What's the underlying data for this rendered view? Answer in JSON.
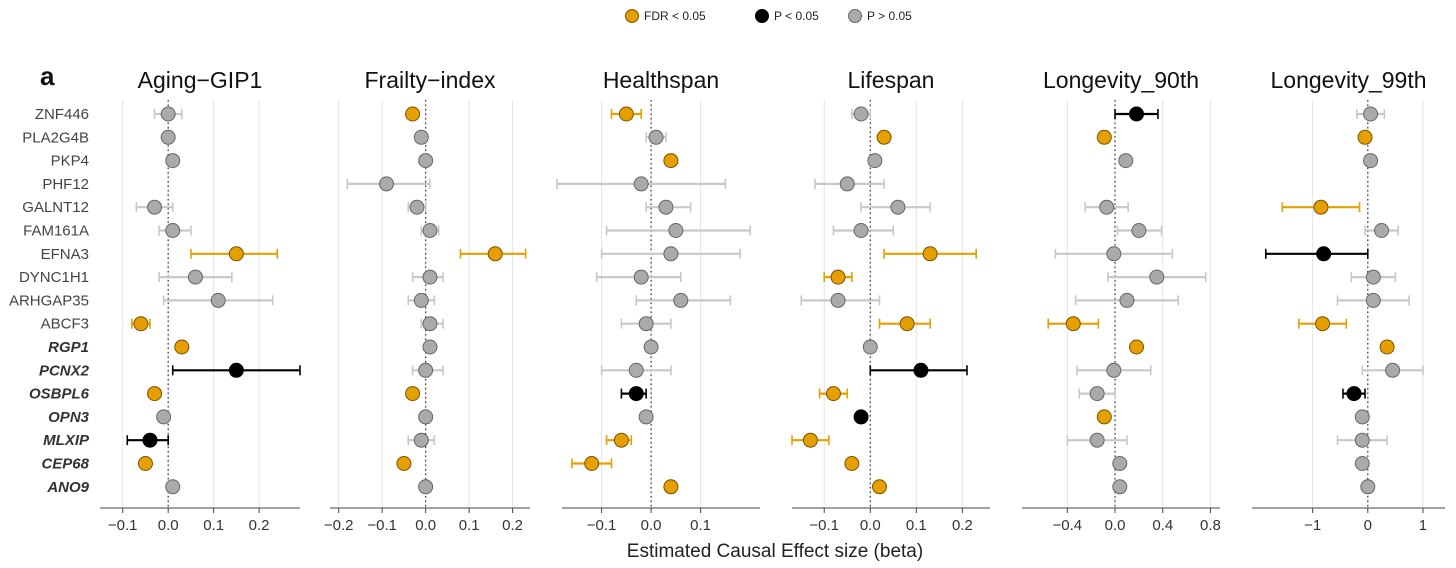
{
  "chart_data": {
    "type": "scatter",
    "panel_letter": "a",
    "xlabel": "Estimated Causal Effect size (beta)",
    "legend": [
      {
        "label": "FDR < 0.05",
        "color": "#E69F00"
      },
      {
        "label": "P < 0.05",
        "color": "#000000"
      },
      {
        "label": "P > 0.05",
        "color": "#AAAAAA"
      }
    ],
    "genes": [
      {
        "name": "ZNF446",
        "bold": false
      },
      {
        "name": "PLA2G4B",
        "bold": false
      },
      {
        "name": "PKP4",
        "bold": false
      },
      {
        "name": "PHF12",
        "bold": false
      },
      {
        "name": "GALNT12",
        "bold": false
      },
      {
        "name": "FAM161A",
        "bold": false
      },
      {
        "name": "EFNA3",
        "bold": false
      },
      {
        "name": "DYNC1H1",
        "bold": false
      },
      {
        "name": "ARHGAP35",
        "bold": false
      },
      {
        "name": "ABCF3",
        "bold": false
      },
      {
        "name": "RGP1",
        "bold": true
      },
      {
        "name": "PCNX2",
        "bold": true
      },
      {
        "name": "OSBPL6",
        "bold": true
      },
      {
        "name": "OPN3",
        "bold": true
      },
      {
        "name": "MLXIP",
        "bold": true
      },
      {
        "name": "CEP68",
        "bold": true
      },
      {
        "name": "ANO9",
        "bold": true
      }
    ],
    "panels": [
      {
        "title": "Aging−GIP1",
        "xlim": [
          -0.15,
          0.29
        ],
        "ticks": [
          -0.1,
          0.0,
          0.1,
          0.2
        ],
        "tick_labels": [
          "−0.1",
          "0.0",
          "0.1",
          "0.2"
        ],
        "points": [
          {
            "b": 0.0,
            "lo": -0.03,
            "hi": 0.03,
            "s": "ns"
          },
          {
            "b": 0.0,
            "lo": -0.01,
            "hi": 0.01,
            "s": "ns"
          },
          {
            "b": 0.01,
            "lo": 0.0,
            "hi": 0.02,
            "s": "ns"
          },
          {
            "b": null,
            "lo": null,
            "hi": null,
            "s": "none"
          },
          {
            "b": -0.03,
            "lo": -0.07,
            "hi": 0.01,
            "s": "ns"
          },
          {
            "b": 0.01,
            "lo": -0.02,
            "hi": 0.05,
            "s": "ns"
          },
          {
            "b": 0.15,
            "lo": 0.05,
            "hi": 0.24,
            "s": "fdr"
          },
          {
            "b": 0.06,
            "lo": -0.02,
            "hi": 0.14,
            "s": "ns"
          },
          {
            "b": 0.11,
            "lo": -0.01,
            "hi": 0.23,
            "s": "ns"
          },
          {
            "b": -0.06,
            "lo": -0.08,
            "hi": -0.04,
            "s": "fdr"
          },
          {
            "b": 0.03,
            "lo": 0.02,
            "hi": 0.04,
            "s": "fdr"
          },
          {
            "b": 0.15,
            "lo": 0.01,
            "hi": 0.29,
            "s": "p"
          },
          {
            "b": -0.03,
            "lo": -0.04,
            "hi": -0.02,
            "s": "fdr"
          },
          {
            "b": -0.01,
            "lo": -0.02,
            "hi": 0.0,
            "s": "ns"
          },
          {
            "b": -0.04,
            "lo": -0.09,
            "hi": 0.0,
            "s": "p"
          },
          {
            "b": -0.05,
            "lo": -0.06,
            "hi": -0.04,
            "s": "fdr"
          },
          {
            "b": 0.01,
            "lo": 0.0,
            "hi": 0.02,
            "s": "ns"
          }
        ]
      },
      {
        "title": "Frailty−index",
        "xlim": [
          -0.22,
          0.24
        ],
        "ticks": [
          -0.2,
          -0.1,
          0.0,
          0.1,
          0.2
        ],
        "tick_labels": [
          "−0.2",
          "−0.1",
          "0.0",
          "0.1",
          "0.2"
        ],
        "points": [
          {
            "b": -0.03,
            "lo": -0.04,
            "hi": -0.02,
            "s": "fdr"
          },
          {
            "b": -0.01,
            "lo": -0.02,
            "hi": 0.0,
            "s": "ns"
          },
          {
            "b": 0.0,
            "lo": -0.01,
            "hi": 0.01,
            "s": "ns"
          },
          {
            "b": -0.09,
            "lo": -0.18,
            "hi": 0.01,
            "s": "ns"
          },
          {
            "b": -0.02,
            "lo": -0.04,
            "hi": 0.0,
            "s": "ns"
          },
          {
            "b": 0.01,
            "lo": -0.01,
            "hi": 0.03,
            "s": "ns"
          },
          {
            "b": 0.16,
            "lo": 0.08,
            "hi": 0.23,
            "s": "fdr"
          },
          {
            "b": 0.01,
            "lo": -0.03,
            "hi": 0.04,
            "s": "ns"
          },
          {
            "b": -0.01,
            "lo": -0.04,
            "hi": 0.02,
            "s": "ns"
          },
          {
            "b": 0.01,
            "lo": -0.01,
            "hi": 0.04,
            "s": "ns"
          },
          {
            "b": 0.01,
            "lo": 0.0,
            "hi": 0.02,
            "s": "ns"
          },
          {
            "b": 0.0,
            "lo": -0.03,
            "hi": 0.04,
            "s": "ns"
          },
          {
            "b": -0.03,
            "lo": -0.04,
            "hi": -0.02,
            "s": "fdr"
          },
          {
            "b": 0.0,
            "lo": -0.01,
            "hi": 0.01,
            "s": "ns"
          },
          {
            "b": -0.01,
            "lo": -0.04,
            "hi": 0.02,
            "s": "ns"
          },
          {
            "b": -0.05,
            "lo": -0.06,
            "hi": -0.04,
            "s": "fdr"
          },
          {
            "b": 0.0,
            "lo": -0.01,
            "hi": 0.01,
            "s": "ns"
          }
        ]
      },
      {
        "title": "Healthspan",
        "xlim": [
          -0.18,
          0.22
        ],
        "ticks": [
          -0.1,
          0.0,
          0.1
        ],
        "tick_labels": [
          "−0.1",
          "0.0",
          "0.1"
        ],
        "points": [
          {
            "b": -0.05,
            "lo": -0.08,
            "hi": -0.02,
            "s": "fdr"
          },
          {
            "b": 0.01,
            "lo": -0.01,
            "hi": 0.03,
            "s": "ns"
          },
          {
            "b": 0.04,
            "lo": 0.03,
            "hi": 0.05,
            "s": "fdr"
          },
          {
            "b": -0.02,
            "lo": -0.19,
            "hi": 0.15,
            "s": "ns"
          },
          {
            "b": 0.03,
            "lo": -0.01,
            "hi": 0.08,
            "s": "ns"
          },
          {
            "b": 0.05,
            "lo": -0.09,
            "hi": 0.2,
            "s": "ns"
          },
          {
            "b": 0.04,
            "lo": -0.1,
            "hi": 0.18,
            "s": "ns"
          },
          {
            "b": -0.02,
            "lo": -0.11,
            "hi": 0.06,
            "s": "ns"
          },
          {
            "b": 0.06,
            "lo": -0.03,
            "hi": 0.16,
            "s": "ns"
          },
          {
            "b": -0.01,
            "lo": -0.06,
            "hi": 0.04,
            "s": "ns"
          },
          {
            "b": 0.0,
            "lo": -0.01,
            "hi": 0.01,
            "s": "ns"
          },
          {
            "b": -0.03,
            "lo": -0.1,
            "hi": 0.04,
            "s": "ns"
          },
          {
            "b": -0.03,
            "lo": -0.06,
            "hi": -0.01,
            "s": "p"
          },
          {
            "b": -0.01,
            "lo": -0.02,
            "hi": 0.0,
            "s": "ns"
          },
          {
            "b": -0.06,
            "lo": -0.09,
            "hi": -0.04,
            "s": "fdr"
          },
          {
            "b": -0.12,
            "lo": -0.16,
            "hi": -0.08,
            "s": "fdr"
          },
          {
            "b": 0.04,
            "lo": 0.03,
            "hi": 0.05,
            "s": "fdr"
          }
        ]
      },
      {
        "title": "Lifespan",
        "xlim": [
          -0.17,
          0.26
        ],
        "ticks": [
          -0.1,
          0.0,
          0.1,
          0.2
        ],
        "tick_labels": [
          "−0.1",
          "0.0",
          "0.1",
          "0.2"
        ],
        "points": [
          {
            "b": -0.02,
            "lo": -0.04,
            "hi": 0.0,
            "s": "ns"
          },
          {
            "b": 0.03,
            "lo": 0.02,
            "hi": 0.04,
            "s": "fdr"
          },
          {
            "b": 0.01,
            "lo": 0.0,
            "hi": 0.02,
            "s": "ns"
          },
          {
            "b": -0.05,
            "lo": -0.12,
            "hi": 0.03,
            "s": "ns"
          },
          {
            "b": 0.06,
            "lo": -0.02,
            "hi": 0.13,
            "s": "ns"
          },
          {
            "b": -0.02,
            "lo": -0.08,
            "hi": 0.05,
            "s": "ns"
          },
          {
            "b": 0.13,
            "lo": 0.03,
            "hi": 0.23,
            "s": "fdr"
          },
          {
            "b": -0.07,
            "lo": -0.1,
            "hi": -0.04,
            "s": "fdr"
          },
          {
            "b": -0.07,
            "lo": -0.15,
            "hi": 0.02,
            "s": "ns"
          },
          {
            "b": 0.08,
            "lo": 0.02,
            "hi": 0.13,
            "s": "fdr"
          },
          {
            "b": 0.0,
            "lo": -0.01,
            "hi": 0.01,
            "s": "ns"
          },
          {
            "b": 0.11,
            "lo": 0.0,
            "hi": 0.21,
            "s": "p"
          },
          {
            "b": -0.08,
            "lo": -0.11,
            "hi": -0.05,
            "s": "fdr"
          },
          {
            "b": -0.02,
            "lo": -0.03,
            "hi": -0.01,
            "s": "p"
          },
          {
            "b": -0.13,
            "lo": -0.17,
            "hi": -0.09,
            "s": "fdr"
          },
          {
            "b": -0.04,
            "lo": -0.05,
            "hi": -0.03,
            "s": "fdr"
          },
          {
            "b": 0.02,
            "lo": 0.01,
            "hi": 0.03,
            "s": "fdr"
          }
        ]
      },
      {
        "title": "Longevity_90th",
        "xlim": [
          -0.78,
          0.88
        ],
        "ticks": [
          -0.4,
          0.0,
          0.4,
          0.8
        ],
        "tick_labels": [
          "−0.4",
          "0.0",
          "0.4",
          "0.8"
        ],
        "points": [
          {
            "b": 0.18,
            "lo": 0.0,
            "hi": 0.36,
            "s": "p"
          },
          {
            "b": -0.09,
            "lo": -0.13,
            "hi": -0.05,
            "s": "fdr"
          },
          {
            "b": 0.09,
            "lo": 0.05,
            "hi": 0.13,
            "s": "ns"
          },
          {
            "b": null,
            "lo": null,
            "hi": null,
            "s": "none"
          },
          {
            "b": -0.07,
            "lo": -0.25,
            "hi": 0.11,
            "s": "ns"
          },
          {
            "b": 0.2,
            "lo": 0.02,
            "hi": 0.39,
            "s": "ns"
          },
          {
            "b": -0.01,
            "lo": -0.5,
            "hi": 0.48,
            "s": "ns"
          },
          {
            "b": 0.35,
            "lo": -0.06,
            "hi": 0.76,
            "s": "ns"
          },
          {
            "b": 0.1,
            "lo": -0.33,
            "hi": 0.53,
            "s": "ns"
          },
          {
            "b": -0.35,
            "lo": -0.56,
            "hi": -0.14,
            "s": "fdr"
          },
          {
            "b": 0.18,
            "lo": 0.15,
            "hi": 0.21,
            "s": "fdr"
          },
          {
            "b": -0.01,
            "lo": -0.32,
            "hi": 0.3,
            "s": "ns"
          },
          {
            "b": -0.15,
            "lo": -0.3,
            "hi": 0.0,
            "s": "ns"
          },
          {
            "b": -0.09,
            "lo": -0.13,
            "hi": -0.05,
            "s": "fdr"
          },
          {
            "b": -0.15,
            "lo": -0.4,
            "hi": 0.1,
            "s": "ns"
          },
          {
            "b": 0.04,
            "lo": 0.01,
            "hi": 0.07,
            "s": "ns"
          },
          {
            "b": 0.04,
            "lo": 0.01,
            "hi": 0.07,
            "s": "ns"
          }
        ]
      },
      {
        "title": "Longevity_99th",
        "xlim": [
          -2.1,
          1.4
        ],
        "ticks": [
          -1,
          0,
          1
        ],
        "tick_labels": [
          "−1",
          "0",
          "1"
        ],
        "points": [
          {
            "b": 0.05,
            "lo": -0.2,
            "hi": 0.3,
            "s": "ns"
          },
          {
            "b": -0.05,
            "lo": -0.12,
            "hi": 0.02,
            "s": "fdr"
          },
          {
            "b": 0.05,
            "lo": -0.05,
            "hi": 0.15,
            "s": "ns"
          },
          {
            "b": null,
            "lo": null,
            "hi": null,
            "s": "none"
          },
          {
            "b": -0.85,
            "lo": -1.55,
            "hi": -0.15,
            "s": "fdr"
          },
          {
            "b": 0.25,
            "lo": -0.05,
            "hi": 0.55,
            "s": "ns"
          },
          {
            "b": -0.8,
            "lo": -1.85,
            "hi": 0.0,
            "s": "p"
          },
          {
            "b": 0.1,
            "lo": -0.3,
            "hi": 0.5,
            "s": "ns"
          },
          {
            "b": 0.1,
            "lo": -0.55,
            "hi": 0.75,
            "s": "ns"
          },
          {
            "b": -0.82,
            "lo": -1.25,
            "hi": -0.39,
            "s": "fdr"
          },
          {
            "b": 0.35,
            "lo": 0.25,
            "hi": 0.45,
            "s": "fdr"
          },
          {
            "b": 0.45,
            "lo": -0.1,
            "hi": 1.0,
            "s": "ns"
          },
          {
            "b": -0.25,
            "lo": -0.45,
            "hi": -0.05,
            "s": "p"
          },
          {
            "b": -0.1,
            "lo": -0.2,
            "hi": 0.0,
            "s": "ns"
          },
          {
            "b": -0.1,
            "lo": -0.55,
            "hi": 0.35,
            "s": "ns"
          },
          {
            "b": -0.1,
            "lo": -0.18,
            "hi": -0.02,
            "s": "ns"
          },
          {
            "b": 0.0,
            "lo": -0.05,
            "hi": 0.05,
            "s": "ns"
          }
        ]
      }
    ]
  }
}
